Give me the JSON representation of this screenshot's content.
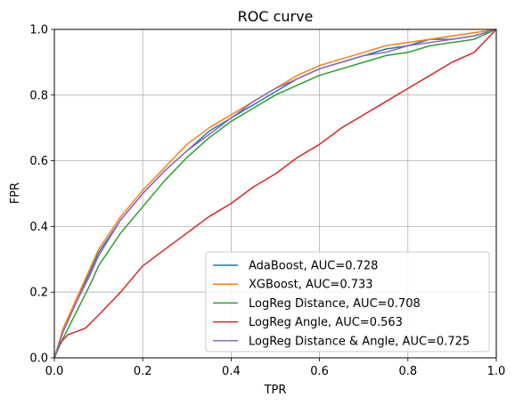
{
  "chart_data": {
    "type": "line",
    "title": "ROC curve",
    "xlabel": "TPR",
    "ylabel": "FPR",
    "xlim": [
      0,
      1
    ],
    "ylim": [
      0,
      1
    ],
    "xticks": [
      "0.0",
      "0.2",
      "0.4",
      "0.6",
      "0.8",
      "1.0"
    ],
    "yticks": [
      "0.0",
      "0.2",
      "0.4",
      "0.6",
      "0.8",
      "1.0"
    ],
    "grid": true,
    "legend_position": "lower-right",
    "series": [
      {
        "name": "AdaBoost, AUC=0.728",
        "color": "#1f77b4",
        "x": [
          0,
          0.02,
          0.05,
          0.08,
          0.1,
          0.15,
          0.2,
          0.25,
          0.3,
          0.35,
          0.4,
          0.45,
          0.5,
          0.55,
          0.6,
          0.65,
          0.7,
          0.75,
          0.8,
          0.85,
          0.9,
          0.95,
          1.0
        ],
        "y": [
          0,
          0.08,
          0.17,
          0.26,
          0.32,
          0.42,
          0.5,
          0.57,
          0.63,
          0.69,
          0.73,
          0.77,
          0.81,
          0.85,
          0.88,
          0.9,
          0.92,
          0.94,
          0.95,
          0.97,
          0.97,
          0.98,
          1.0
        ]
      },
      {
        "name": "XGBoost, AUC=0.733",
        "color": "#ff7f0e",
        "x": [
          0,
          0.02,
          0.05,
          0.08,
          0.1,
          0.15,
          0.2,
          0.25,
          0.3,
          0.35,
          0.4,
          0.45,
          0.5,
          0.55,
          0.6,
          0.65,
          0.7,
          0.75,
          0.8,
          0.85,
          0.9,
          0.95,
          1.0
        ],
        "y": [
          0,
          0.09,
          0.18,
          0.27,
          0.33,
          0.43,
          0.51,
          0.58,
          0.65,
          0.7,
          0.74,
          0.78,
          0.82,
          0.86,
          0.89,
          0.91,
          0.93,
          0.95,
          0.96,
          0.97,
          0.98,
          0.99,
          1.0
        ]
      },
      {
        "name": "LogReg Distance, AUC=0.708",
        "color": "#2ca02c",
        "x": [
          0,
          0.02,
          0.05,
          0.08,
          0.1,
          0.15,
          0.2,
          0.25,
          0.3,
          0.35,
          0.4,
          0.45,
          0.5,
          0.55,
          0.6,
          0.65,
          0.7,
          0.75,
          0.8,
          0.85,
          0.9,
          0.95,
          1.0
        ],
        "y": [
          0,
          0.06,
          0.14,
          0.22,
          0.28,
          0.38,
          0.46,
          0.54,
          0.61,
          0.67,
          0.72,
          0.76,
          0.8,
          0.83,
          0.86,
          0.88,
          0.9,
          0.92,
          0.93,
          0.95,
          0.96,
          0.97,
          1.0
        ]
      },
      {
        "name": "LogReg Angle, AUC=0.563",
        "color": "#d62728",
        "x": [
          0,
          0.01,
          0.03,
          0.07,
          0.1,
          0.15,
          0.2,
          0.25,
          0.3,
          0.35,
          0.4,
          0.45,
          0.5,
          0.55,
          0.6,
          0.65,
          0.7,
          0.75,
          0.8,
          0.85,
          0.9,
          0.95,
          1.0
        ],
        "y": [
          0,
          0.04,
          0.07,
          0.09,
          0.13,
          0.2,
          0.28,
          0.33,
          0.38,
          0.43,
          0.47,
          0.52,
          0.56,
          0.61,
          0.65,
          0.7,
          0.74,
          0.78,
          0.82,
          0.86,
          0.9,
          0.93,
          1.0
        ]
      },
      {
        "name": "LogReg Distance & Angle, AUC=0.725",
        "color": "#9467bd",
        "x": [
          0,
          0.02,
          0.05,
          0.08,
          0.1,
          0.15,
          0.2,
          0.25,
          0.3,
          0.35,
          0.4,
          0.45,
          0.5,
          0.55,
          0.6,
          0.65,
          0.7,
          0.75,
          0.8,
          0.85,
          0.9,
          0.95,
          1.0
        ],
        "y": [
          0,
          0.08,
          0.17,
          0.25,
          0.31,
          0.42,
          0.5,
          0.57,
          0.63,
          0.68,
          0.73,
          0.78,
          0.82,
          0.85,
          0.88,
          0.9,
          0.92,
          0.93,
          0.95,
          0.96,
          0.97,
          0.98,
          1.0
        ]
      }
    ]
  }
}
